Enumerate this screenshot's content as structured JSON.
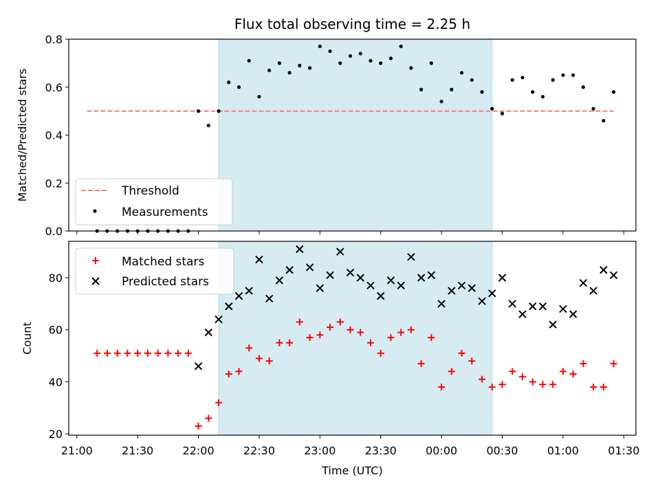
{
  "chart_data": [
    {
      "type": "scatter",
      "title": "Flux total observing time = 2.25 h",
      "xlabel": "",
      "ylabel": "Matched/Predicted stars",
      "ylim": [
        0,
        0.8
      ],
      "xlim": [
        "20:56",
        "01:36"
      ],
      "yticks": [
        "0.0",
        "0.2",
        "0.4",
        "0.6",
        "0.8"
      ],
      "legend": {
        "placement": "lower-left",
        "entries": [
          "Threshold",
          "Measurements"
        ]
      },
      "highlight_span": {
        "start": "22:10",
        "end": "00:25",
        "color": "#add8e6"
      },
      "threshold": {
        "name": "Threshold",
        "y": 0.5,
        "x_start": "21:05",
        "x_end": "01:25",
        "color": "#f08080"
      },
      "series": [
        {
          "name": "Measurements",
          "color": "#000000",
          "x": [
            "21:10",
            "21:15",
            "21:20",
            "21:25",
            "21:30",
            "21:35",
            "21:40",
            "21:45",
            "21:50",
            "21:55",
            "22:00",
            "22:05",
            "22:10",
            "22:15",
            "22:20",
            "22:25",
            "22:30",
            "22:35",
            "22:40",
            "22:45",
            "22:50",
            "22:55",
            "23:00",
            "23:05",
            "23:10",
            "23:15",
            "23:20",
            "23:25",
            "23:30",
            "23:35",
            "23:40",
            "23:45",
            "23:50",
            "23:55",
            "00:00",
            "00:05",
            "00:10",
            "00:15",
            "00:20",
            "00:25",
            "00:30",
            "00:35",
            "00:40",
            "00:45",
            "00:50",
            "00:55",
            "01:00",
            "01:05",
            "01:10",
            "01:15",
            "01:20",
            "01:25"
          ],
          "y": [
            0,
            0,
            0,
            0,
            0,
            0,
            0,
            0,
            0,
            0,
            0.5,
            0.44,
            0.5,
            0.62,
            0.6,
            0.71,
            0.56,
            0.67,
            0.7,
            0.66,
            0.69,
            0.68,
            0.77,
            0.75,
            0.7,
            0.73,
            0.74,
            0.71,
            0.7,
            0.72,
            0.77,
            0.68,
            0.59,
            0.7,
            0.54,
            0.59,
            0.66,
            0.63,
            0.58,
            0.51,
            0.49,
            0.63,
            0.64,
            0.58,
            0.56,
            0.63,
            0.65,
            0.65,
            0.6,
            0.51,
            0.46,
            0.58
          ]
        }
      ]
    },
    {
      "type": "scatter",
      "xlabel": "Time (UTC)",
      "ylabel": "Count",
      "ylim": [
        19.5,
        94
      ],
      "xlim": [
        "20:56",
        "01:36"
      ],
      "yticks": [
        "20",
        "40",
        "60",
        "80"
      ],
      "xticks": [
        "21:00",
        "21:30",
        "22:00",
        "22:30",
        "23:00",
        "23:30",
        "00:00",
        "00:30",
        "01:00",
        "01:30"
      ],
      "legend": {
        "placement": "upper-left",
        "entries": [
          "Matched stars",
          "Predicted stars"
        ]
      },
      "highlight_span": {
        "start": "22:10",
        "end": "00:25",
        "color": "#add8e6"
      },
      "series": [
        {
          "name": "Matched stars",
          "marker": "plus",
          "color": "#ff0000",
          "x": [
            "21:10",
            "21:15",
            "21:20",
            "21:25",
            "21:30",
            "21:35",
            "21:40",
            "21:45",
            "21:50",
            "21:55",
            "22:00",
            "22:05",
            "22:10",
            "22:15",
            "22:20",
            "22:25",
            "22:30",
            "22:35",
            "22:40",
            "22:45",
            "22:50",
            "22:55",
            "23:00",
            "23:05",
            "23:10",
            "23:15",
            "23:20",
            "23:25",
            "23:30",
            "23:35",
            "23:40",
            "23:45",
            "23:50",
            "23:55",
            "00:00",
            "00:05",
            "00:10",
            "00:15",
            "00:20",
            "00:25",
            "00:30",
            "00:35",
            "00:40",
            "00:45",
            "00:50",
            "00:55",
            "01:00",
            "01:05",
            "01:10",
            "01:15",
            "01:20",
            "01:25"
          ],
          "y": [
            51,
            51,
            51,
            51,
            51,
            51,
            51,
            51,
            51,
            51,
            23,
            26,
            32,
            43,
            44,
            53,
            49,
            48,
            55,
            55,
            63,
            57,
            58,
            61,
            63,
            60,
            59,
            55,
            51,
            57,
            59,
            60,
            47,
            57,
            38,
            44,
            51,
            48,
            41,
            38,
            39,
            44,
            42,
            40,
            39,
            39,
            44,
            43,
            47,
            38,
            38,
            47
          ]
        },
        {
          "name": "Predicted stars",
          "marker": "x",
          "color": "#000000",
          "x": [
            "22:00",
            "22:05",
            "22:10",
            "22:15",
            "22:20",
            "22:25",
            "22:30",
            "22:35",
            "22:40",
            "22:45",
            "22:50",
            "22:55",
            "23:00",
            "23:05",
            "23:10",
            "23:15",
            "23:20",
            "23:25",
            "23:30",
            "23:35",
            "23:40",
            "23:45",
            "23:50",
            "23:55",
            "00:00",
            "00:05",
            "00:10",
            "00:15",
            "00:20",
            "00:25",
            "00:30",
            "00:35",
            "00:40",
            "00:45",
            "00:50",
            "00:55",
            "01:00",
            "01:05",
            "01:10",
            "01:15",
            "01:20",
            "01:25"
          ],
          "y": [
            46,
            59,
            64,
            69,
            73,
            75,
            87,
            72,
            79,
            83,
            91,
            84,
            76,
            81,
            90,
            82,
            80,
            77,
            73,
            79,
            77,
            88,
            80,
            81,
            70,
            75,
            77,
            76,
            71,
            74,
            80,
            70,
            66,
            69,
            69,
            62,
            68,
            66,
            78,
            75,
            83,
            81
          ]
        }
      ]
    }
  ]
}
